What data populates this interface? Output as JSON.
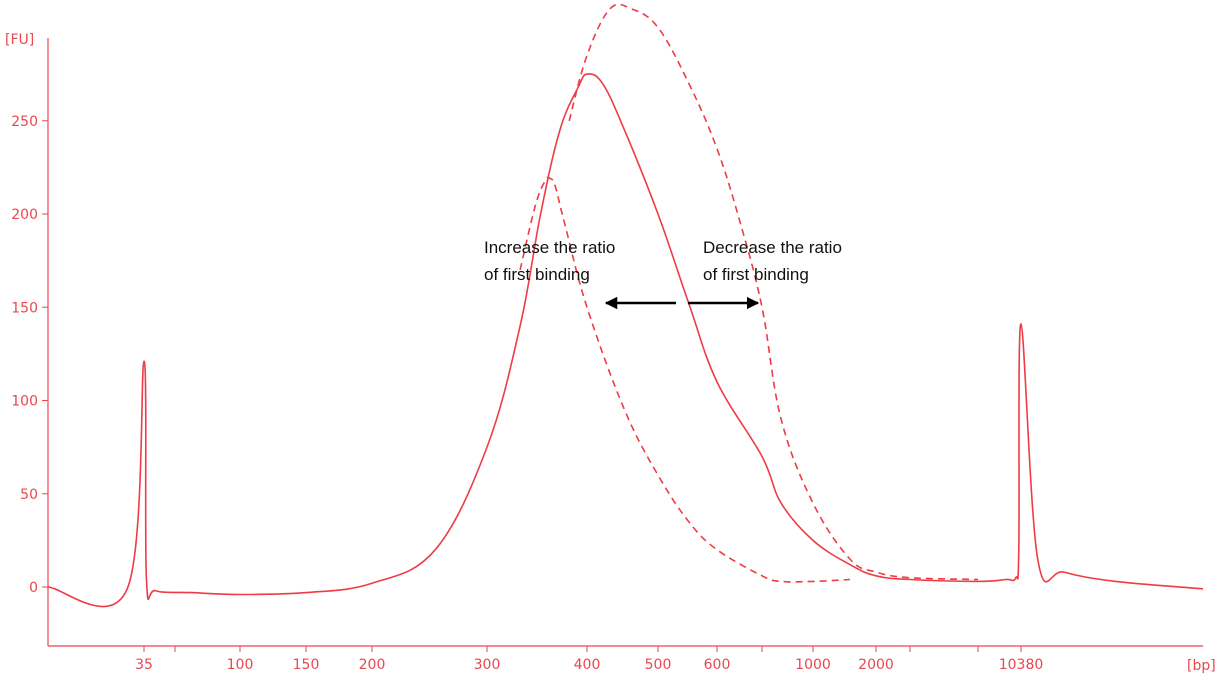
{
  "chart_data": {
    "type": "line",
    "title": "",
    "ylabel": "[FU]",
    "xlabel": "[bp]",
    "ylim": [
      -30,
      295
    ],
    "yticks": [
      0,
      50,
      100,
      150,
      200,
      250
    ],
    "x_scale": "log-like (electropherogram ladder)",
    "xticks": [
      "35",
      "100",
      "150",
      "200",
      "300",
      "400",
      "500",
      "600",
      "1000",
      "2000",
      "10380"
    ],
    "grid": false,
    "colors": {
      "trace": "#ee3b45",
      "axis": "#e8484f",
      "arrow": "#000000"
    },
    "series": [
      {
        "style": "solid",
        "x": [
          25,
          33,
          35,
          36,
          40,
          60,
          100,
          150,
          200,
          250,
          300,
          330,
          350,
          370,
          390,
          400,
          420,
          450,
          500,
          550,
          600,
          700,
          800,
          1000,
          1500,
          2000,
          3000,
          5000,
          8000,
          9500,
          10000,
          10380,
          10800,
          11500,
          13000,
          16000
        ],
        "y": [
          0,
          -1,
          121,
          5,
          -2,
          -3,
          -4,
          -3,
          2,
          20,
          75,
          140,
          200,
          245,
          268,
          275,
          270,
          245,
          200,
          152,
          110,
          70,
          45,
          25,
          12,
          6,
          4,
          3,
          4,
          5,
          20,
          141,
          15,
          8,
          3,
          -1
        ]
      },
      {
        "style": "dashed",
        "x": [
          330,
          345,
          355,
          360,
          365,
          375,
          400,
          450,
          500,
          550,
          600,
          700,
          800,
          1000,
          1500
        ],
        "y": [
          170,
          205,
          218,
          219,
          215,
          195,
          150,
          95,
          60,
          35,
          20,
          6,
          3,
          3,
          4
        ]
      },
      {
        "style": "dashed",
        "x": [
          380,
          400,
          430,
          460,
          500,
          550,
          600,
          650,
          700,
          800,
          1000,
          1500,
          2000,
          3000,
          5000
        ],
        "y": [
          250,
          285,
          310,
          310,
          300,
          270,
          235,
          195,
          150,
          90,
          45,
          15,
          8,
          5,
          4
        ]
      }
    ],
    "annotations": [
      {
        "lines": [
          "Increase the ratio",
          "of first binding"
        ],
        "arrow": "left"
      },
      {
        "lines": [
          "Decrease the ratio",
          "of first binding"
        ],
        "arrow": "right"
      }
    ]
  }
}
